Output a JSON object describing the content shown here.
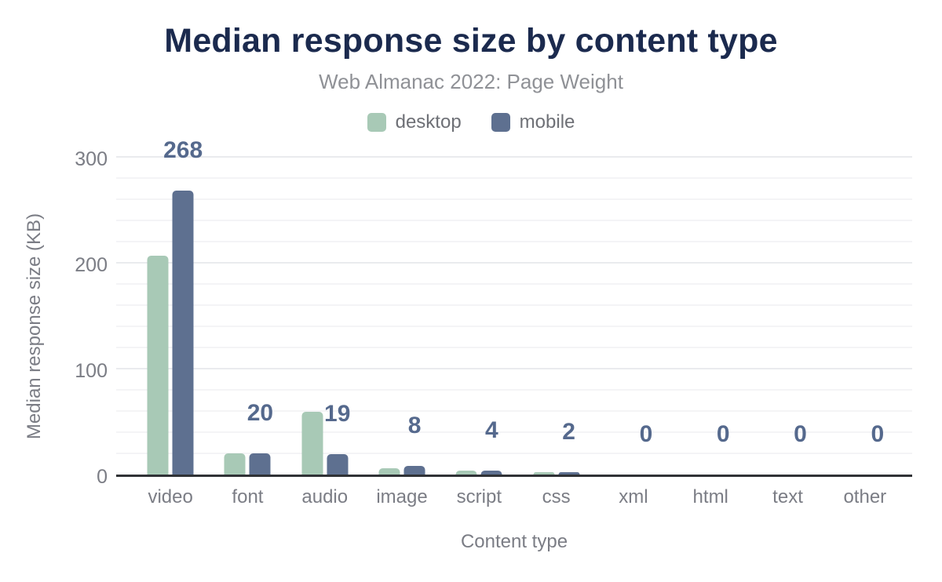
{
  "header": {
    "title": "Median response size by content type",
    "subtitle": "Web Almanac 2022: Page Weight"
  },
  "chart_data": {
    "type": "bar",
    "title": "Median response size by content type",
    "subtitle": "Web Almanac 2022: Page Weight",
    "categories": [
      "video",
      "font",
      "audio",
      "image",
      "script",
      "css",
      "xml",
      "html",
      "text",
      "other"
    ],
    "series": [
      {
        "name": "desktop",
        "color": "#a8c9b6",
        "values": [
          207,
          20,
          59,
          6,
          4,
          2,
          0,
          0,
          0,
          0
        ]
      },
      {
        "name": "mobile",
        "color": "#5e7090",
        "values": [
          268,
          20,
          19,
          8,
          4,
          2,
          0,
          0,
          0,
          0
        ]
      }
    ],
    "data_labels": {
      "series": "mobile",
      "values": [
        "268",
        "20",
        "19",
        "8",
        "4",
        "2",
        "0",
        "0",
        "0",
        "0"
      ]
    },
    "xlabel": "Content type",
    "ylabel": "Median response size (KB)",
    "yticks": [
      0,
      100,
      200,
      300
    ],
    "ylim": [
      0,
      316
    ],
    "grid": true,
    "grid_step": 20,
    "legend_position": "top-center",
    "colors": {
      "title_text": "#1b2a4e",
      "subtitle_text": "#8f9196",
      "axis_text": "#7b7d85",
      "data_label_text": "#55698d",
      "axis_line": "#303236"
    }
  }
}
